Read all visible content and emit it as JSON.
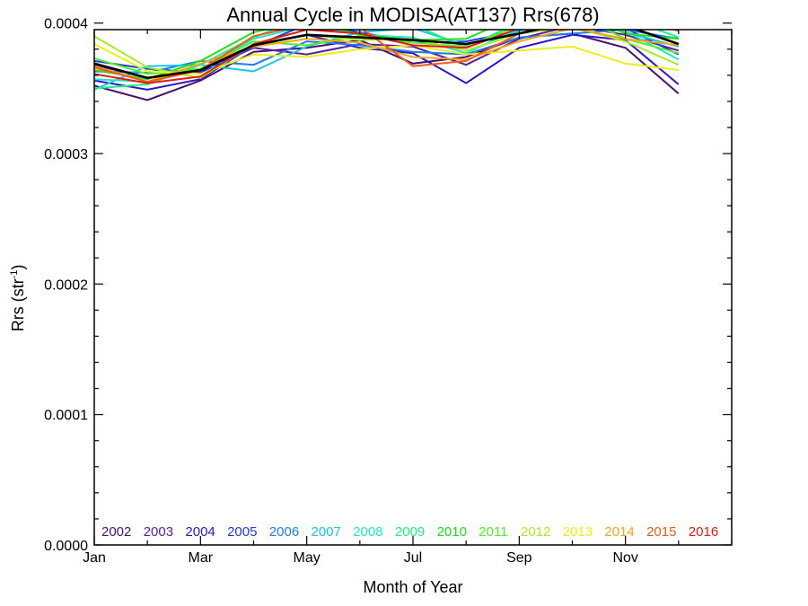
{
  "chart_data": {
    "type": "line",
    "title": "Annual Cycle in MODISA(AT137) Rrs(678)",
    "xlabel": "Month of Year",
    "ylabel_main": "Rrs (str",
    "ylabel_sup": "-1",
    "ylabel_close": ")",
    "xlim": [
      1,
      13
    ],
    "ylim": [
      0.0,
      0.000395
    ],
    "x_ticks": [
      {
        "value": 1,
        "label": "Jan"
      },
      {
        "value": 3,
        "label": "Mar"
      },
      {
        "value": 5,
        "label": "May"
      },
      {
        "value": 7,
        "label": "Jul"
      },
      {
        "value": 9,
        "label": "Sep"
      },
      {
        "value": 11,
        "label": "Nov"
      }
    ],
    "y_ticks": [
      {
        "value": 0.0,
        "label": "0.0000"
      },
      {
        "value": 0.0001,
        "label": "0.0001"
      },
      {
        "value": 0.0002,
        "label": "0.0002"
      },
      {
        "value": 0.0003,
        "label": "0.0003"
      },
      {
        "value": 0.0004,
        "label": "0.0004"
      }
    ],
    "legend_position": "bottom",
    "x": [
      1,
      2,
      3,
      4,
      5,
      6,
      7,
      8,
      9,
      10,
      11,
      12
    ],
    "series": [
      {
        "name": "2002",
        "color": "#4b0f6e",
        "values": [
          0.000352,
          0.000341,
          0.000356,
          0.000378,
          0.000381,
          0.000387,
          0.000369,
          0.000374,
          0.000389,
          0.000392,
          0.000381,
          0.000346
        ]
      },
      {
        "name": "2003",
        "color": "#5a1fa0",
        "values": [
          0.000368,
          0.000358,
          0.000363,
          0.000381,
          0.000376,
          0.000384,
          0.000382,
          0.000368,
          0.000388,
          0.000398,
          0.000391,
          0.000379
        ]
      },
      {
        "name": "2004",
        "color": "#2e14c8",
        "values": [
          0.000356,
          0.000349,
          0.000357,
          0.000383,
          0.000391,
          0.000381,
          0.000377,
          0.000354,
          0.000381,
          0.000391,
          0.000387,
          0.000353
        ]
      },
      {
        "name": "2005",
        "color": "#1f3be6",
        "values": [
          0.000371,
          0.000365,
          0.000362,
          0.000382,
          0.000399,
          0.000393,
          0.000385,
          0.000386,
          0.000394,
          0.000405,
          0.000396,
          0.000376
        ]
      },
      {
        "name": "2006",
        "color": "#1e7cf0",
        "values": [
          0.000363,
          0.000362,
          0.000371,
          0.000368,
          0.000386,
          0.000383,
          0.000378,
          0.000376,
          0.000389,
          0.000392,
          0.000395,
          0.000388
        ]
      },
      {
        "name": "2007",
        "color": "#18c6f0",
        "values": [
          0.000349,
          0.000367,
          0.000368,
          0.000363,
          0.000382,
          0.000393,
          0.000396,
          0.000383,
          0.000394,
          0.000403,
          0.000393,
          0.000382
        ]
      },
      {
        "name": "2008",
        "color": "#20e8c8",
        "values": [
          0.000357,
          0.000355,
          0.000364,
          0.000388,
          0.000398,
          0.000391,
          0.000389,
          0.000377,
          0.000396,
          0.000408,
          0.000394,
          0.000372
        ]
      },
      {
        "name": "2009",
        "color": "#1ef085",
        "values": [
          0.00035,
          0.000353,
          0.000368,
          0.000389,
          0.000405,
          0.000396,
          0.000399,
          0.000381,
          0.000401,
          0.000412,
          0.000404,
          0.000389
        ]
      },
      {
        "name": "2010",
        "color": "#20e020",
        "values": [
          0.000364,
          0.000357,
          0.000371,
          0.000393,
          0.000402,
          0.000391,
          0.000387,
          0.000388,
          0.000406,
          0.000409,
          0.000392,
          0.000388
        ]
      },
      {
        "name": "2011",
        "color": "#55ef28",
        "values": [
          0.000373,
          0.000361,
          0.000365,
          0.000386,
          0.000383,
          0.00039,
          0.000385,
          0.000382,
          0.000398,
          0.000407,
          0.000388,
          0.000377
        ]
      },
      {
        "name": "2012",
        "color": "#a6ec2a",
        "values": [
          0.00039,
          0.000366,
          0.000358,
          0.000384,
          0.000391,
          0.000387,
          0.000388,
          0.000379,
          0.000392,
          0.000397,
          0.000386,
          0.000368
        ]
      },
      {
        "name": "2013",
        "color": "#eeee18",
        "values": [
          0.000384,
          0.000363,
          0.000361,
          0.000376,
          0.000374,
          0.00038,
          0.000383,
          0.000376,
          0.000379,
          0.000382,
          0.000369,
          0.000364
        ]
      },
      {
        "name": "2014",
        "color": "#f4a61a",
        "values": [
          0.000367,
          0.000355,
          0.000369,
          0.000382,
          0.000388,
          0.000385,
          0.000374,
          0.000372,
          0.000386,
          0.000396,
          0.000388,
          0.000383
        ]
      },
      {
        "name": "2015",
        "color": "#f55a14",
        "values": [
          0.000366,
          0.000355,
          0.000364,
          0.00039,
          0.000399,
          0.000397,
          0.000367,
          0.000371,
          0.000392,
          0.000405,
          0.000407,
          0.000394
        ]
      },
      {
        "name": "2016",
        "color": "#e61a10",
        "values": [
          0.000361,
          0.000354,
          0.000359,
          0.000384,
          0.000395,
          0.000392,
          0.000383,
          0.000381,
          0.000396,
          0.000402,
          0.000398,
          0.000384
        ]
      }
    ],
    "reference_series": [
      {
        "color": "#000000",
        "values": [
          0.000369,
          0.000358,
          0.000364,
          0.000383,
          0.000391,
          0.000389,
          0.000387,
          0.000384,
          0.000392,
          0.000401,
          0.000398,
          0.000384
        ]
      }
    ]
  }
}
